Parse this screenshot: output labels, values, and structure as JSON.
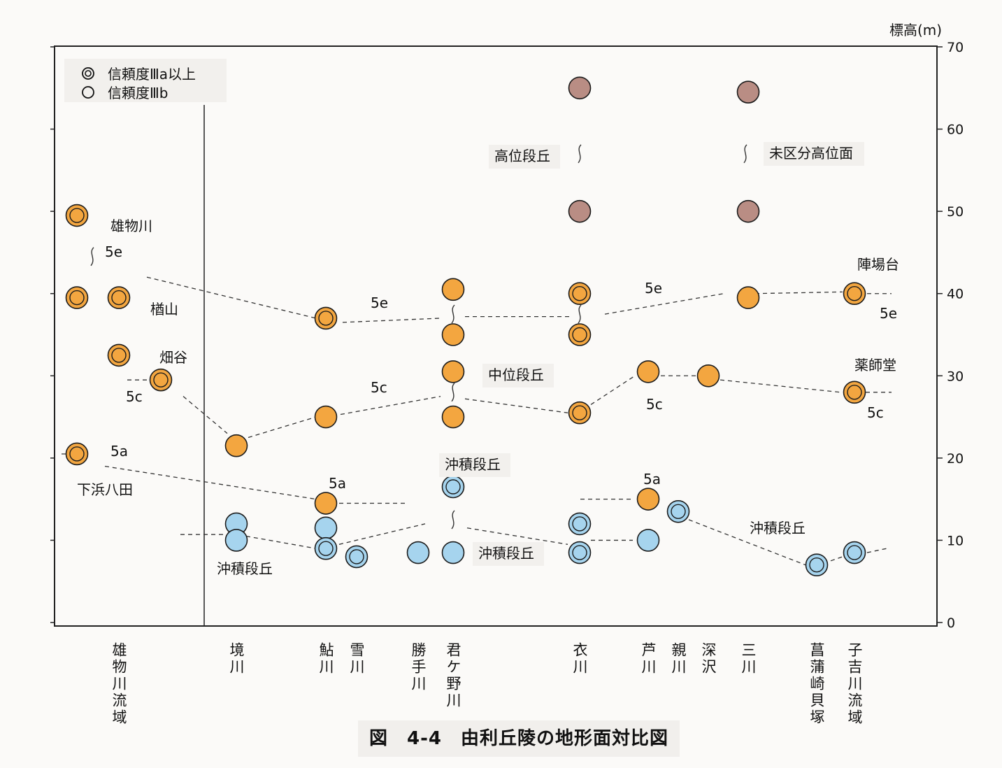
{
  "chart_data": {
    "type": "scatter",
    "title": "図　4-4　由利丘陵の地形面対比図",
    "ylabel": "標高(m)",
    "ylim": [
      0,
      70
    ],
    "yticks": [
      0,
      10,
      20,
      30,
      40,
      50,
      60,
      70
    ],
    "legend": {
      "placement": "top-left",
      "entries": [
        "信頼度Ⅲa以上",
        "信頼度Ⅲb"
      ]
    },
    "colors": {
      "middle_terrace": "#f3a640",
      "high_terrace": "#b98d84",
      "alluvial_terrace": "#a6d4ee",
      "ring": "#222222"
    },
    "categories": [
      {
        "id": "yumono",
        "label": "雄物川流域"
      },
      {
        "id": "sakai",
        "label": "境川"
      },
      {
        "id": "ayu",
        "label": "鮎川"
      },
      {
        "id": "yuki",
        "label": "雪川"
      },
      {
        "id": "katte",
        "label": "勝手川"
      },
      {
        "id": "kimigano",
        "label": "君ケ野川"
      },
      {
        "id": "koromo",
        "label": "衣川"
      },
      {
        "id": "ashi",
        "label": "芦川"
      },
      {
        "id": "oya",
        "label": "親川"
      },
      {
        "id": "fuka",
        "label": "深沢"
      },
      {
        "id": "mi",
        "label": "三川"
      },
      {
        "id": "shobu",
        "label": "菖蒲崎貝塚"
      },
      {
        "id": "kogi",
        "label": "子吉川流域"
      }
    ],
    "points": [
      {
        "cat": "yumono",
        "offset": -1,
        "y": 49.5,
        "fill": "middle_terrace",
        "rel": "IIIa"
      },
      {
        "cat": "yumono",
        "offset": -1,
        "y": 39.5,
        "fill": "middle_terrace",
        "rel": "IIIa"
      },
      {
        "cat": "yumono",
        "offset": 0,
        "y": 39.5,
        "fill": "middle_terrace",
        "rel": "IIIa"
      },
      {
        "cat": "yumono",
        "offset": 0,
        "y": 32.5,
        "fill": "middle_terrace",
        "rel": "IIIa"
      },
      {
        "cat": "yumono",
        "offset": 1,
        "y": 29.5,
        "fill": "middle_terrace",
        "rel": "IIIa"
      },
      {
        "cat": "yumono",
        "offset": -1,
        "y": 20.5,
        "fill": "middle_terrace",
        "rel": "IIIa"
      },
      {
        "cat": "sakai",
        "y": 21.5,
        "fill": "middle_terrace",
        "rel": "IIIb"
      },
      {
        "cat": "sakai",
        "y": 12,
        "fill": "alluvial_terrace",
        "rel": "IIIb"
      },
      {
        "cat": "sakai",
        "y": 10,
        "fill": "alluvial_terrace",
        "rel": "IIIb"
      },
      {
        "cat": "ayu",
        "y": 37,
        "fill": "middle_terrace",
        "rel": "IIIa"
      },
      {
        "cat": "ayu",
        "y": 25,
        "fill": "middle_terrace",
        "rel": "IIIb"
      },
      {
        "cat": "ayu",
        "y": 14.5,
        "fill": "middle_terrace",
        "rel": "IIIb"
      },
      {
        "cat": "ayu",
        "y": 11.5,
        "fill": "alluvial_terrace",
        "rel": "IIIb"
      },
      {
        "cat": "ayu",
        "y": 9,
        "fill": "alluvial_terrace",
        "rel": "IIIa"
      },
      {
        "cat": "yuki",
        "y": 8,
        "fill": "alluvial_terrace",
        "rel": "IIIa"
      },
      {
        "cat": "katte",
        "y": 8.5,
        "fill": "alluvial_terrace",
        "rel": "IIIb"
      },
      {
        "cat": "kimigano",
        "y": 40.5,
        "fill": "middle_terrace",
        "rel": "IIIb"
      },
      {
        "cat": "kimigano",
        "y": 35,
        "fill": "middle_terrace",
        "rel": "IIIb"
      },
      {
        "cat": "kimigano",
        "y": 30.5,
        "fill": "middle_terrace",
        "rel": "IIIb"
      },
      {
        "cat": "kimigano",
        "y": 25,
        "fill": "middle_terrace",
        "rel": "IIIb"
      },
      {
        "cat": "kimigano",
        "y": 16.5,
        "fill": "alluvial_terrace",
        "rel": "IIIa"
      },
      {
        "cat": "kimigano",
        "y": 8.5,
        "fill": "alluvial_terrace",
        "rel": "IIIb"
      },
      {
        "cat": "koromo",
        "y": 65,
        "fill": "high_terrace",
        "rel": "IIIb"
      },
      {
        "cat": "koromo",
        "y": 50,
        "fill": "high_terrace",
        "rel": "IIIb"
      },
      {
        "cat": "koromo",
        "y": 40,
        "fill": "middle_terrace",
        "rel": "IIIa"
      },
      {
        "cat": "koromo",
        "y": 35,
        "fill": "middle_terrace",
        "rel": "IIIa"
      },
      {
        "cat": "koromo",
        "y": 25.5,
        "fill": "middle_terrace",
        "rel": "IIIa"
      },
      {
        "cat": "koromo",
        "y": 12,
        "fill": "alluvial_terrace",
        "rel": "IIIa"
      },
      {
        "cat": "koromo",
        "y": 8.5,
        "fill": "alluvial_terrace",
        "rel": "IIIa"
      },
      {
        "cat": "ashi",
        "y": 30.5,
        "fill": "middle_terrace",
        "rel": "IIIb"
      },
      {
        "cat": "ashi",
        "y": 15,
        "fill": "middle_terrace",
        "rel": "IIIb"
      },
      {
        "cat": "ashi",
        "y": 10,
        "fill": "alluvial_terrace",
        "rel": "IIIb"
      },
      {
        "cat": "oya",
        "y": 13.5,
        "fill": "alluvial_terrace",
        "rel": "IIIa"
      },
      {
        "cat": "fuka",
        "y": 30,
        "fill": "middle_terrace",
        "rel": "IIIb"
      },
      {
        "cat": "mi",
        "y": 64.5,
        "fill": "high_terrace",
        "rel": "IIIb"
      },
      {
        "cat": "mi",
        "y": 50,
        "fill": "high_terrace",
        "rel": "IIIb"
      },
      {
        "cat": "mi",
        "y": 39.5,
        "fill": "middle_terrace",
        "rel": "IIIb"
      },
      {
        "cat": "shobu",
        "y": 7,
        "fill": "alluvial_terrace",
        "rel": "IIIa"
      },
      {
        "cat": "kogi",
        "y": 40,
        "fill": "middle_terrace",
        "rel": "IIIa"
      },
      {
        "cat": "kogi",
        "y": 28,
        "fill": "middle_terrace",
        "rel": "IIIa"
      },
      {
        "cat": "kogi",
        "y": 8.5,
        "fill": "alluvial_terrace",
        "rel": "IIIa"
      }
    ],
    "annotations": [
      "雄物川",
      "5e",
      "楢山",
      "畑谷",
      "5c",
      "5a",
      "下浜八田",
      "5e",
      "5c",
      "5a",
      "沖積段丘",
      "中位段丘",
      "沖積段丘",
      "沖積段丘",
      "高位段丘",
      "未区分高位面",
      "5e",
      "5c",
      "5a",
      "沖積段丘",
      "陣場台",
      "5e",
      "薬師堂",
      "5c"
    ]
  }
}
